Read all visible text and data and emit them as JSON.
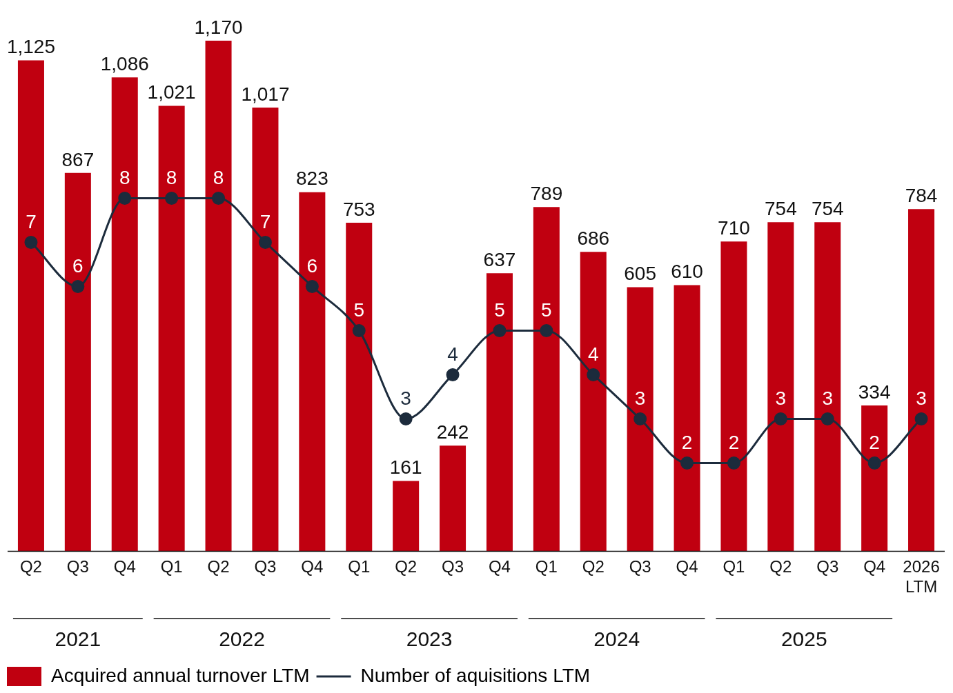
{
  "chart_data": {
    "type": "bar",
    "categories": [
      "Q2",
      "Q3",
      "Q4",
      "Q1",
      "Q2",
      "Q3",
      "Q4",
      "Q1",
      "Q2",
      "Q3",
      "Q4",
      "Q1",
      "Q2",
      "Q3",
      "Q4",
      "Q1",
      "Q2",
      "Q3",
      "Q4",
      "2026\nLTM"
    ],
    "annotations": [
      "2021",
      "2022",
      "2023",
      "2024",
      "2025"
    ],
    "series": [
      {
        "name": "Acquired annual turnover LTM",
        "color": "#c00010",
        "values": [
          1125,
          867,
          1086,
          1021,
          1170,
          1017,
          823,
          753,
          161,
          242,
          637,
          789,
          686,
          605,
          610,
          710,
          754,
          754,
          334,
          784
        ],
        "value_labels": [
          "1,125",
          "867",
          "1,086",
          "1,021",
          "1,170",
          "1,017",
          "823",
          "753",
          "161",
          "242",
          "637",
          "789",
          "686",
          "605",
          "610",
          "710",
          "754",
          "754",
          "334",
          "784"
        ]
      },
      {
        "name": "Number of aquisitions LTM",
        "type": "line",
        "axis": "y2",
        "color": "#1c2b3c",
        "values": [
          7,
          6,
          8,
          8,
          8,
          7,
          6,
          5,
          3,
          4,
          5,
          5,
          4,
          3,
          2,
          2,
          3,
          3,
          2,
          3
        ]
      }
    ],
    "data_labels": true,
    "marker": "circle",
    "line_style": "solid",
    "grid": false,
    "legend": "bottom left"
  }
}
